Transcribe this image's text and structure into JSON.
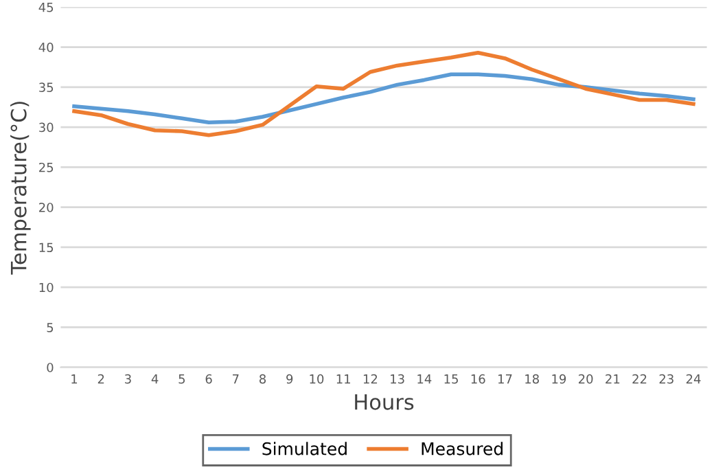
{
  "chart_data": {
    "type": "line",
    "xlabel": "Hours",
    "ylabel": "Temperature(°C)",
    "categories": [
      "1",
      "2",
      "3",
      "4",
      "5",
      "6",
      "7",
      "8",
      "9",
      "10",
      "11",
      "12",
      "13",
      "14",
      "15",
      "16",
      "17",
      "18",
      "19",
      "20",
      "21",
      "22",
      "23",
      "24"
    ],
    "series": [
      {
        "name": "Simulated",
        "color": "#5b9bd5",
        "values": [
          32.6,
          32.3,
          32.0,
          31.6,
          31.1,
          30.6,
          30.7,
          31.3,
          32.1,
          32.9,
          33.7,
          34.4,
          35.3,
          35.9,
          36.6,
          36.6,
          36.4,
          36.0,
          35.3,
          35.0,
          34.6,
          34.2,
          33.9,
          33.5
        ]
      },
      {
        "name": "Measured",
        "color": "#ed7d31",
        "values": [
          32.0,
          31.5,
          30.4,
          29.6,
          29.5,
          29.0,
          29.5,
          30.3,
          32.7,
          35.1,
          34.8,
          36.9,
          37.7,
          38.2,
          38.7,
          39.3,
          38.6,
          37.2,
          36.0,
          34.8,
          34.1,
          33.4,
          33.4,
          32.9
        ]
      }
    ],
    "ylim": [
      0,
      45
    ],
    "yticks": [
      0,
      5,
      10,
      15,
      20,
      25,
      30,
      35,
      40,
      45
    ],
    "grid": "y",
    "legend": "bottom",
    "marker": "none",
    "line_style": "solid"
  }
}
